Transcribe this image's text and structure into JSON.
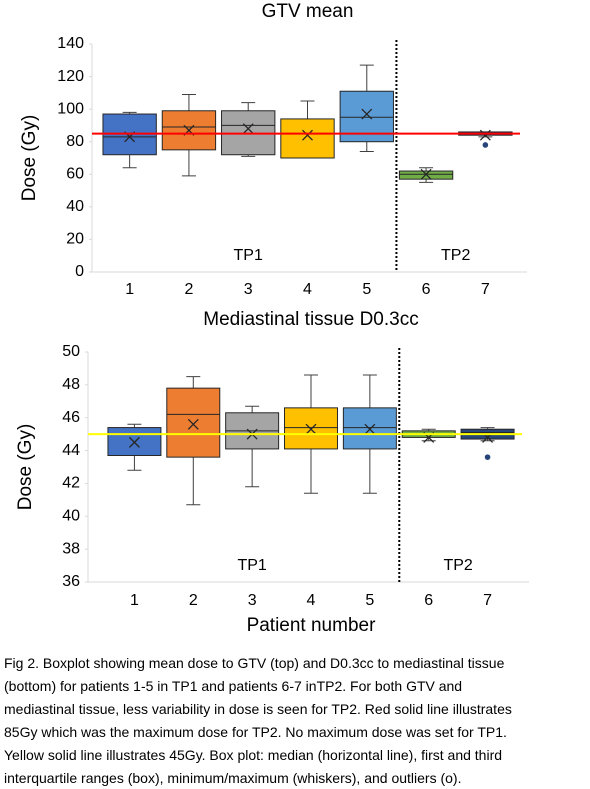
{
  "chart_data": [
    {
      "type": "box",
      "title": "GTV mean",
      "ylabel": "Dose (Gy)",
      "categories": [
        "1",
        "2",
        "3",
        "4",
        "5",
        "6",
        "7"
      ],
      "colors": [
        "#4472c4",
        "#ed7d31",
        "#a5a5a5",
        "#ffc000",
        "#5b9bd5",
        "#70ad47",
        "#264478"
      ],
      "boxes": [
        {
          "min": 64,
          "q1": 72,
          "median": 83,
          "q3": 97,
          "max": 98,
          "mean": 83,
          "outliers": []
        },
        {
          "min": 59,
          "q1": 75,
          "median": 89,
          "q3": 99,
          "max": 109,
          "mean": 87,
          "outliers": []
        },
        {
          "min": 71,
          "q1": 72,
          "median": 90,
          "q3": 99,
          "max": 104,
          "mean": 88,
          "outliers": []
        },
        {
          "min": 70,
          "q1": 70,
          "median": 70,
          "q3": 94,
          "max": 105,
          "mean": 84,
          "outliers": []
        },
        {
          "min": 74,
          "q1": 80,
          "median": 95,
          "q3": 111,
          "max": 127,
          "mean": 97,
          "outliers": []
        },
        {
          "min": 55,
          "q1": 57,
          "median": 60,
          "q3": 62,
          "max": 64,
          "mean": 60,
          "outliers": []
        },
        {
          "min": 83,
          "q1": 84,
          "median": 85,
          "q3": 86,
          "max": 86,
          "mean": 84,
          "outliers": [
            78
          ]
        }
      ],
      "ylim": [
        0,
        140
      ],
      "yticks": [
        0,
        20,
        40,
        60,
        80,
        100,
        120,
        140
      ],
      "reference_line": {
        "value": 85,
        "color": "#ff0000"
      },
      "annotations": [
        "TP1",
        "TP2"
      ]
    },
    {
      "type": "box",
      "title": "Mediastinal tissue D0.3cc",
      "ylabel": "Dose (Gy)",
      "xlabel": "Patient number",
      "categories": [
        "1",
        "2",
        "3",
        "4",
        "5",
        "6",
        "7"
      ],
      "colors": [
        "#4472c4",
        "#ed7d31",
        "#a5a5a5",
        "#ffc000",
        "#5b9bd5",
        "#70ad47",
        "#264478"
      ],
      "boxes": [
        {
          "min": 42.8,
          "q1": 43.7,
          "median": 45.0,
          "q3": 45.4,
          "max": 45.6,
          "mean": 44.5,
          "outliers": []
        },
        {
          "min": 40.7,
          "q1": 43.6,
          "median": 46.2,
          "q3": 47.8,
          "max": 48.5,
          "mean": 45.6,
          "outliers": []
        },
        {
          "min": 41.8,
          "q1": 44.1,
          "median": 45.2,
          "q3": 46.3,
          "max": 46.7,
          "mean": 45.0,
          "outliers": []
        },
        {
          "min": 41.4,
          "q1": 44.1,
          "median": 45.4,
          "q3": 46.6,
          "max": 48.6,
          "mean": 45.3,
          "outliers": []
        },
        {
          "min": 41.4,
          "q1": 44.1,
          "median": 45.4,
          "q3": 46.6,
          "max": 48.6,
          "mean": 45.3,
          "outliers": []
        },
        {
          "min": 44.6,
          "q1": 44.8,
          "median": 45.0,
          "q3": 45.2,
          "max": 45.3,
          "mean": 44.8,
          "outliers": []
        },
        {
          "min": 44.6,
          "q1": 44.7,
          "median": 45.1,
          "q3": 45.3,
          "max": 45.4,
          "mean": 44.8,
          "outliers": [
            43.6
          ]
        }
      ],
      "ylim": [
        36,
        50
      ],
      "yticks": [
        36,
        38,
        40,
        42,
        44,
        46,
        48,
        50
      ],
      "reference_line": {
        "value": 45,
        "color": "#ffff00"
      },
      "annotations": [
        "TP1",
        "TP2"
      ]
    }
  ],
  "caption": [
    "Fig 2. Boxplot showing mean dose to GTV (top) and D0.3cc to mediastinal tissue",
    "(bottom) for patients 1-5 in TP1 and patients 6-7 inTP2. For both GTV and",
    "mediastinal tissue, less variability in dose is seen for TP2. Red solid line illustrates",
    "85Gy which was the maximum dose for TP2. No maximum dose was set for TP1.",
    "Yellow solid line illustrates 45Gy. Box plot: median (horizontal line), first and third",
    "interquartile ranges (box), minimum/maximum (whiskers), and outliers (o)."
  ]
}
